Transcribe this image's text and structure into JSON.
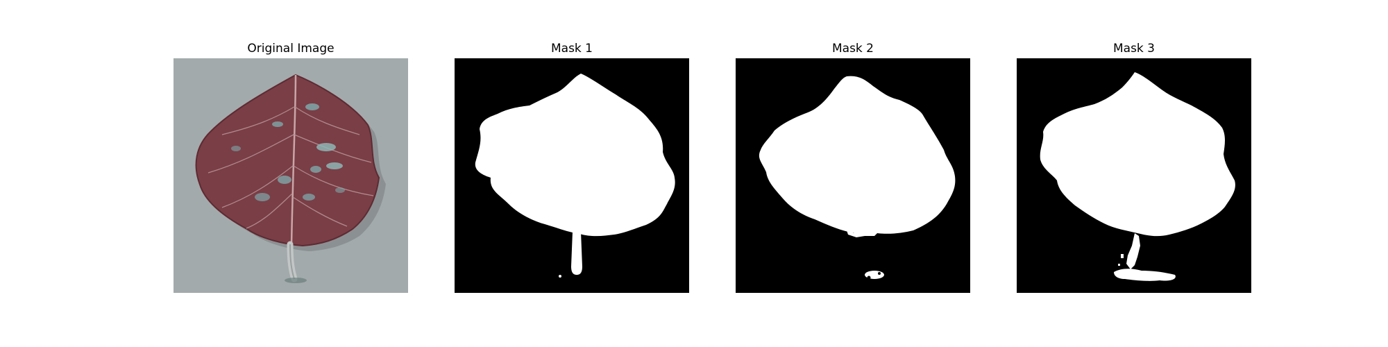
{
  "panels": [
    {
      "title": "Original Image"
    },
    {
      "title": "Mask 1"
    },
    {
      "title": "Mask 2"
    },
    {
      "title": "Mask 3"
    }
  ],
  "colors": {
    "background_photo": "#9ea5a6",
    "leaf": "#7a3e46",
    "leaf_dark": "#5e2a33",
    "leaf_spot": "#7fa7a9",
    "mask_background": "#000000",
    "mask_foreground": "#ffffff"
  }
}
